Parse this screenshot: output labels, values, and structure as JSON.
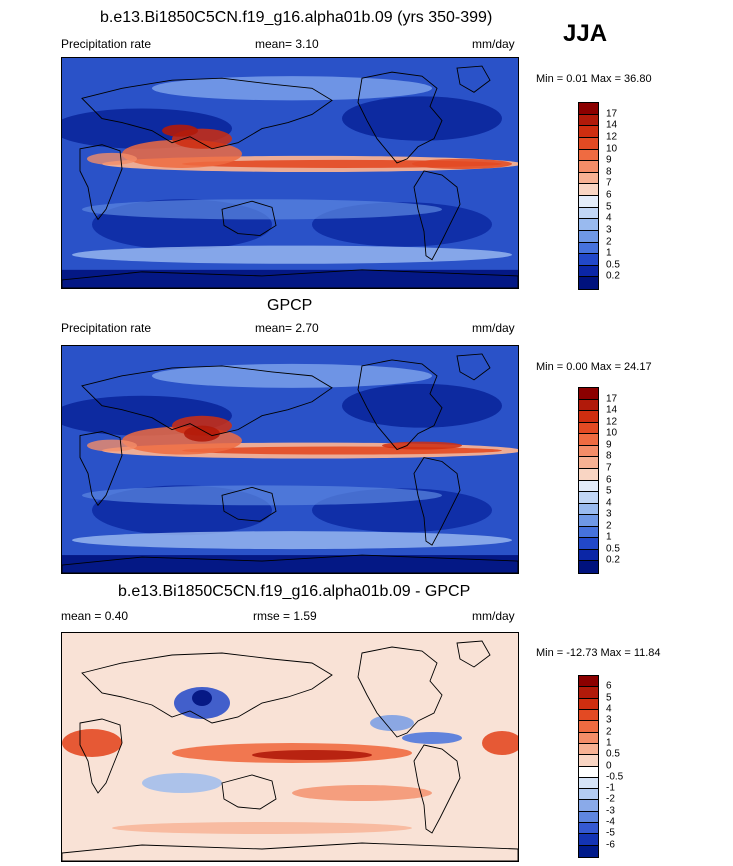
{
  "season": "JJA",
  "panels": [
    {
      "title": "b.e13.Bi1850C5CN.f19_g16.alpha01b.09 (yrs 350-399)",
      "left_label": "Precipitation rate",
      "stat1": "mean=   3.10",
      "stat2": "",
      "units": "mm/day",
      "minmax": "Min =   0.01 Max =  36.80",
      "colorbar": {
        "labels": [
          "17",
          "14",
          "12",
          "10",
          "9",
          "8",
          "7",
          "6",
          "5",
          "4",
          "3",
          "2",
          "1",
          "0.5",
          "0.2"
        ],
        "colors": [
          "#8b0000",
          "#b11a0a",
          "#cf2e10",
          "#e34a23",
          "#ef6b41",
          "#f48d68",
          "#f7b193",
          "#f9d5c3",
          "#e3ecfa",
          "#c1d6f6",
          "#99baef",
          "#6f98e6",
          "#4672dd",
          "#2248c9",
          "#0b26a6",
          "#00127d"
        ]
      },
      "field": "model"
    },
    {
      "title": "GPCP",
      "left_label": "Precipitation rate",
      "stat1": "mean=   2.70",
      "stat2": "",
      "units": "mm/day",
      "minmax": "Min =   0.00 Max =  24.17",
      "colorbar": {
        "labels": [
          "17",
          "14",
          "12",
          "10",
          "9",
          "8",
          "7",
          "6",
          "5",
          "4",
          "3",
          "2",
          "1",
          "0.5",
          "0.2"
        ],
        "colors": [
          "#8b0000",
          "#b11a0a",
          "#cf2e10",
          "#e34a23",
          "#ef6b41",
          "#f48d68",
          "#f7b193",
          "#f9d5c3",
          "#e3ecfa",
          "#c1d6f6",
          "#99baef",
          "#6f98e6",
          "#4672dd",
          "#2248c9",
          "#0b26a6",
          "#00127d"
        ]
      },
      "field": "obs"
    },
    {
      "title": "b.e13.Bi1850C5CN.f19_g16.alpha01b.09 - GPCP",
      "left_label": "mean =   0.40",
      "stat1": "rmse =   1.59",
      "stat2": "",
      "units": "mm/day",
      "minmax": "Min = -12.73 Max =  11.84",
      "colorbar": {
        "labels": [
          "6",
          "5",
          "4",
          "3",
          "2",
          "1",
          "0.5",
          "0",
          "-0.5",
          "-1",
          "-2",
          "-3",
          "-4",
          "-5",
          "-6"
        ],
        "colors": [
          "#8b0000",
          "#b11a0a",
          "#cf2e10",
          "#e34a23",
          "#ef6b41",
          "#f48d68",
          "#f7b193",
          "#f9d5c3",
          "#ffffff",
          "#d6e4f8",
          "#b3cbf2",
          "#8aaae9",
          "#5f86df",
          "#3559d2",
          "#1434b4",
          "#001a8a"
        ]
      },
      "field": "diff"
    }
  ]
}
